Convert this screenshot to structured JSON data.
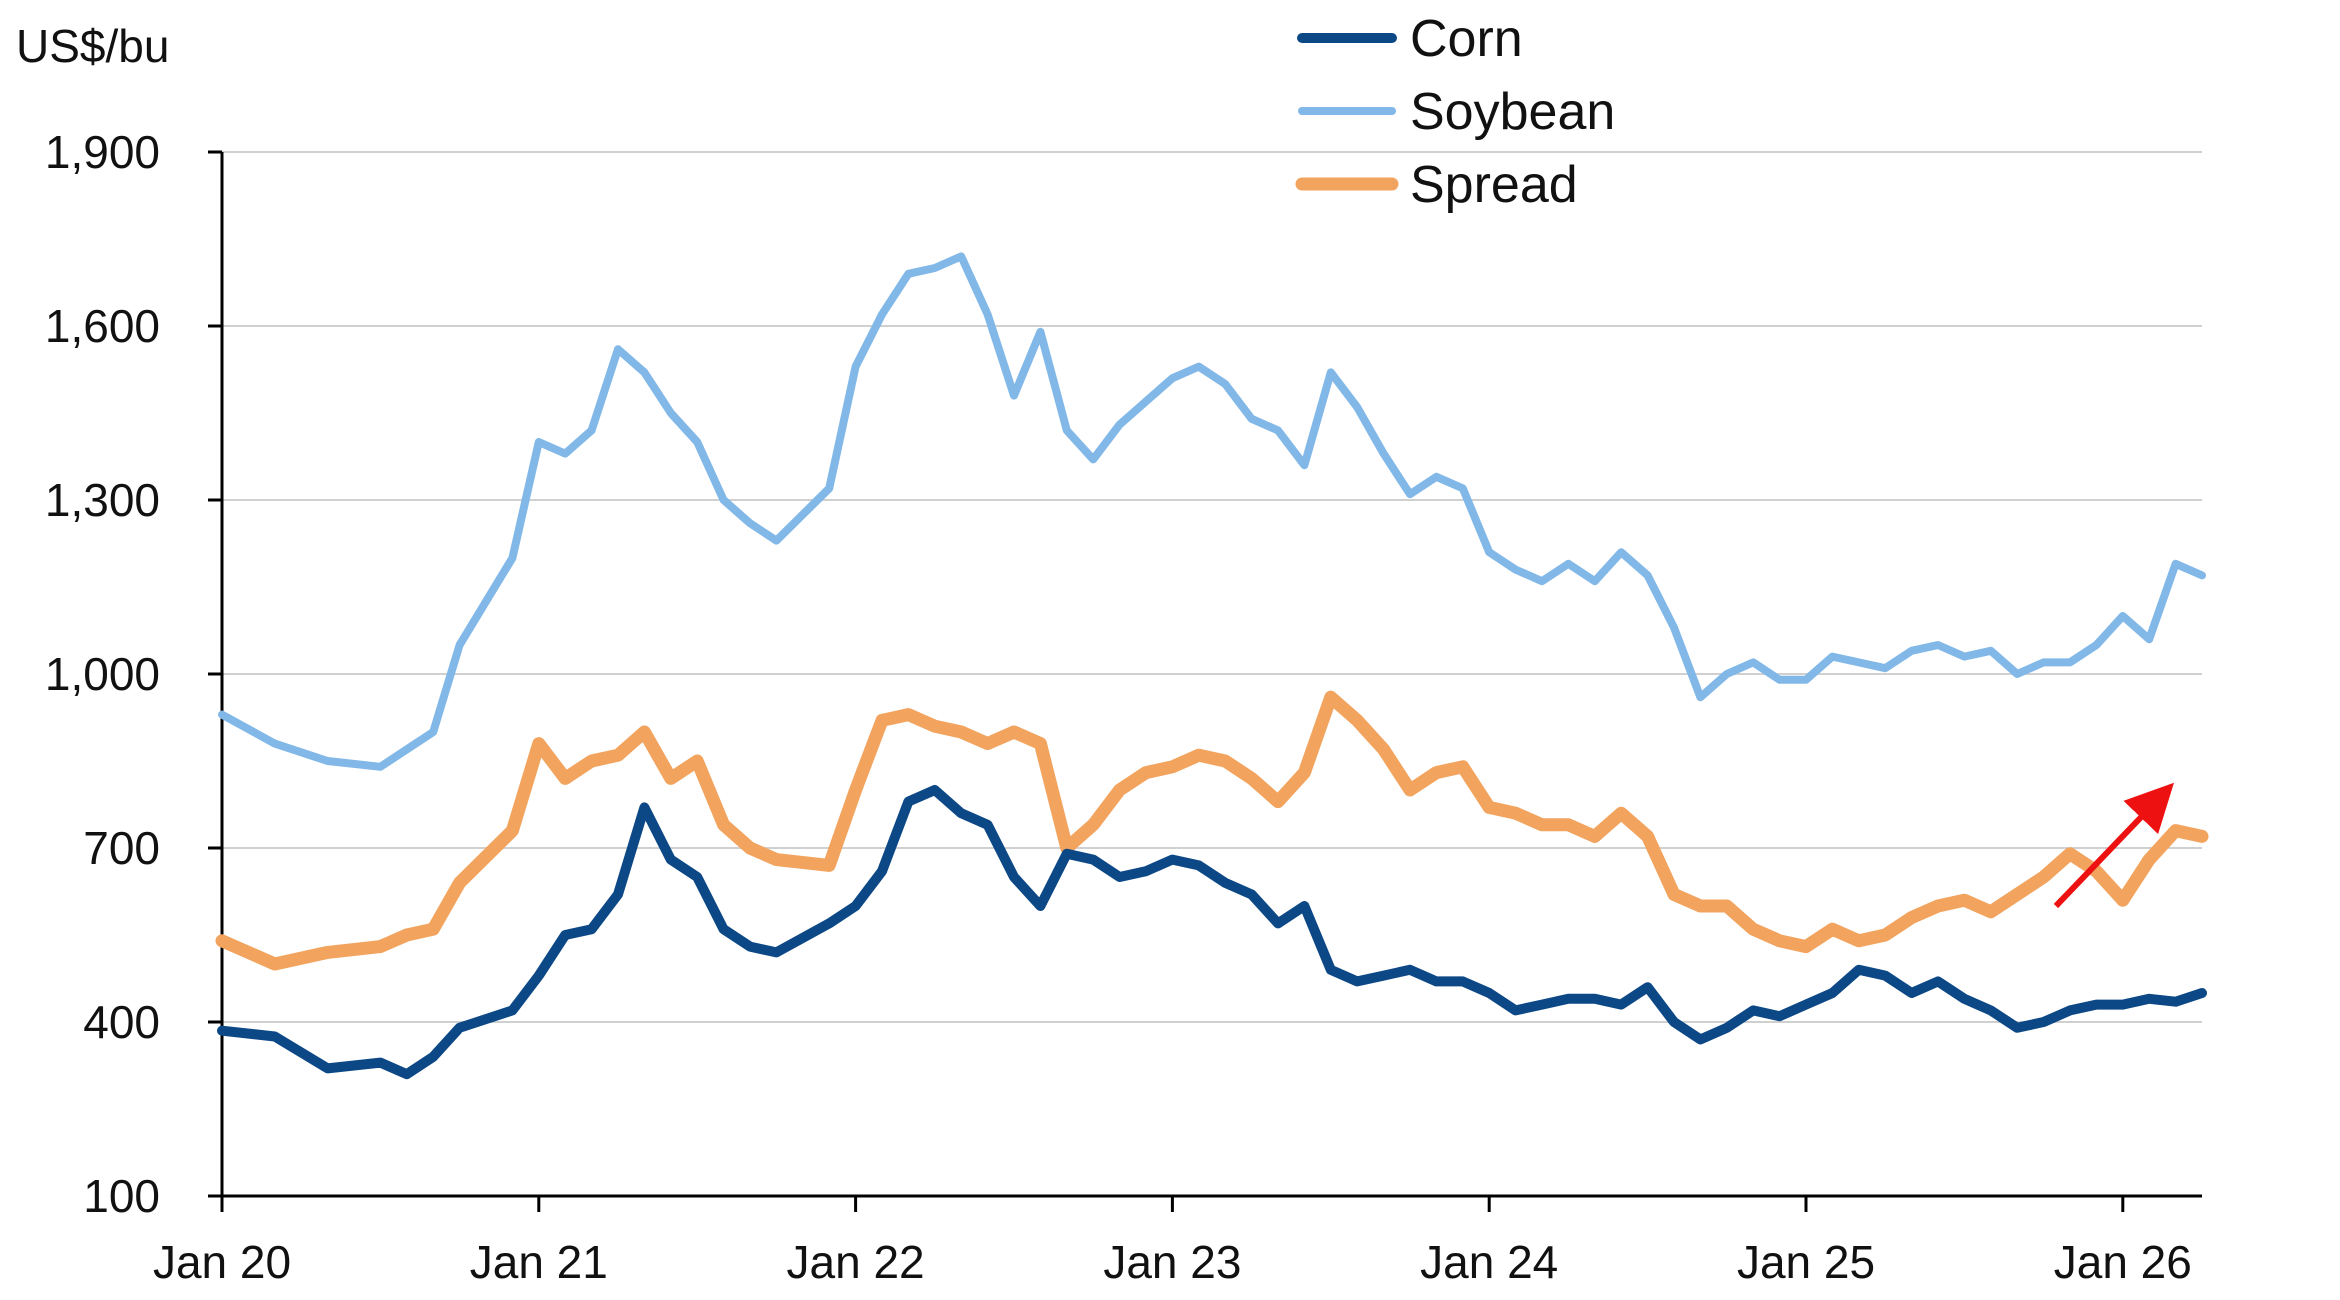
{
  "chart_data": {
    "type": "line",
    "ylabel": "US$/bu",
    "yticks": [
      100,
      400,
      700,
      1000,
      1300,
      1600,
      1900
    ],
    "ytick_labels": [
      "100",
      "400",
      "700",
      "1,000",
      "1,300",
      "1,600",
      "1,900"
    ],
    "ylim": [
      100,
      1900
    ],
    "xlim": [
      "2020-01",
      "2026-04"
    ],
    "xticks": [
      "2020-01",
      "2021-01",
      "2022-01",
      "2023-01",
      "2024-01",
      "2025-01",
      "2026-01"
    ],
    "xtick_labels": [
      "Jan 20",
      "Jan 21",
      "Jan 22",
      "Jan 23",
      "Jan 24",
      "Jan 25",
      "Jan 26"
    ],
    "grid": "horizontal",
    "legend_position": "top-center",
    "series": [
      {
        "name": "Corn",
        "color": "#0d4886",
        "x": [
          "2020-01",
          "2020-03",
          "2020-05",
          "2020-07",
          "2020-08",
          "2020-09",
          "2020-10",
          "2020-12",
          "2021-01",
          "2021-02",
          "2021-03",
          "2021-04",
          "2021-05",
          "2021-06",
          "2021-07",
          "2021-08",
          "2021-09",
          "2021-10",
          "2021-12",
          "2022-01",
          "2022-02",
          "2022-03",
          "2022-04",
          "2022-05",
          "2022-06",
          "2022-07",
          "2022-08",
          "2022-09",
          "2022-10",
          "2022-11",
          "2022-12",
          "2023-01",
          "2023-02",
          "2023-03",
          "2023-04",
          "2023-05",
          "2023-06",
          "2023-07",
          "2023-08",
          "2023-09",
          "2023-10",
          "2023-11",
          "2023-12",
          "2024-01",
          "2024-02",
          "2024-03",
          "2024-04",
          "2024-05",
          "2024-06",
          "2024-07",
          "2024-08",
          "2024-09",
          "2024-10",
          "2024-11",
          "2024-12",
          "2025-01",
          "2025-02",
          "2025-03",
          "2025-04",
          "2025-05",
          "2025-06",
          "2025-07",
          "2025-08",
          "2025-09",
          "2025-10",
          "2025-11",
          "2025-12",
          "2026-01",
          "2026-02",
          "2026-03",
          "2026-04"
        ],
        "values": [
          385,
          375,
          320,
          330,
          310,
          340,
          390,
          420,
          480,
          550,
          560,
          620,
          770,
          680,
          650,
          560,
          530,
          520,
          570,
          600,
          660,
          780,
          800,
          760,
          740,
          650,
          600,
          690,
          680,
          650,
          660,
          680,
          670,
          640,
          620,
          570,
          600,
          490,
          470,
          480,
          490,
          470,
          470,
          450,
          420,
          430,
          440,
          440,
          430,
          460,
          400,
          370,
          390,
          420,
          410,
          430,
          450,
          490,
          480,
          450,
          470,
          440,
          420,
          390,
          400,
          420,
          430,
          430,
          440,
          435,
          450
        ],
        "line_width": 10
      },
      {
        "name": "Soybean",
        "color": "#82b8e8",
        "x": [
          "2020-01",
          "2020-03",
          "2020-05",
          "2020-07",
          "2020-08",
          "2020-09",
          "2020-10",
          "2020-12",
          "2021-01",
          "2021-02",
          "2021-03",
          "2021-04",
          "2021-05",
          "2021-06",
          "2021-07",
          "2021-08",
          "2021-09",
          "2021-10",
          "2021-12",
          "2022-01",
          "2022-02",
          "2022-03",
          "2022-04",
          "2022-05",
          "2022-06",
          "2022-07",
          "2022-08",
          "2022-09",
          "2022-10",
          "2022-11",
          "2022-12",
          "2023-01",
          "2023-02",
          "2023-03",
          "2023-04",
          "2023-05",
          "2023-06",
          "2023-07",
          "2023-08",
          "2023-09",
          "2023-10",
          "2023-11",
          "2023-12",
          "2024-01",
          "2024-02",
          "2024-03",
          "2024-04",
          "2024-05",
          "2024-06",
          "2024-07",
          "2024-08",
          "2024-09",
          "2024-10",
          "2024-11",
          "2024-12",
          "2025-01",
          "2025-02",
          "2025-03",
          "2025-04",
          "2025-05",
          "2025-06",
          "2025-07",
          "2025-08",
          "2025-09",
          "2025-10",
          "2025-11",
          "2025-12",
          "2026-01",
          "2026-02",
          "2026-03",
          "2026-04"
        ],
        "values": [
          930,
          880,
          850,
          840,
          870,
          900,
          1050,
          1200,
          1400,
          1380,
          1420,
          1560,
          1520,
          1450,
          1400,
          1300,
          1260,
          1230,
          1320,
          1530,
          1620,
          1690,
          1700,
          1720,
          1620,
          1480,
          1590,
          1420,
          1370,
          1430,
          1470,
          1510,
          1530,
          1500,
          1440,
          1420,
          1360,
          1520,
          1460,
          1380,
          1310,
          1340,
          1320,
          1210,
          1180,
          1160,
          1190,
          1160,
          1210,
          1170,
          1080,
          960,
          1000,
          1020,
          990,
          990,
          1030,
          1020,
          1010,
          1040,
          1050,
          1030,
          1040,
          1000,
          1020,
          1020,
          1050,
          1100,
          1060,
          1190,
          1170
        ],
        "line_width": 8
      },
      {
        "name": "Spread",
        "color": "#f2a35d",
        "x": [
          "2020-01",
          "2020-03",
          "2020-05",
          "2020-07",
          "2020-08",
          "2020-09",
          "2020-10",
          "2020-12",
          "2021-01",
          "2021-02",
          "2021-03",
          "2021-04",
          "2021-05",
          "2021-06",
          "2021-07",
          "2021-08",
          "2021-09",
          "2021-10",
          "2021-12",
          "2022-01",
          "2022-02",
          "2022-03",
          "2022-04",
          "2022-05",
          "2022-06",
          "2022-07",
          "2022-08",
          "2022-09",
          "2022-10",
          "2022-11",
          "2022-12",
          "2023-01",
          "2023-02",
          "2023-03",
          "2023-04",
          "2023-05",
          "2023-06",
          "2023-07",
          "2023-08",
          "2023-09",
          "2023-10",
          "2023-11",
          "2023-12",
          "2024-01",
          "2024-02",
          "2024-03",
          "2024-04",
          "2024-05",
          "2024-06",
          "2024-07",
          "2024-08",
          "2024-09",
          "2024-10",
          "2024-11",
          "2024-12",
          "2025-01",
          "2025-02",
          "2025-03",
          "2025-04",
          "2025-05",
          "2025-06",
          "2025-07",
          "2025-08",
          "2025-09",
          "2025-10",
          "2025-11",
          "2025-12",
          "2026-01",
          "2026-02",
          "2026-03",
          "2026-04"
        ],
        "values": [
          540,
          500,
          520,
          530,
          550,
          560,
          640,
          730,
          880,
          820,
          850,
          860,
          900,
          820,
          850,
          740,
          700,
          680,
          670,
          800,
          920,
          930,
          910,
          900,
          880,
          900,
          880,
          700,
          740,
          800,
          830,
          840,
          860,
          850,
          820,
          780,
          830,
          960,
          920,
          870,
          800,
          830,
          840,
          770,
          760,
          740,
          740,
          720,
          760,
          720,
          620,
          600,
          600,
          560,
          540,
          530,
          560,
          540,
          550,
          580,
          600,
          610,
          590,
          620,
          650,
          690,
          660,
          610,
          680,
          730,
          720
        ],
        "line_width": 13
      }
    ],
    "annotations": [
      {
        "type": "arrow",
        "color": "#ee1111",
        "from": {
          "x": "2025-10-15",
          "y": 600
        },
        "to": {
          "x": "2026-02-15",
          "y": 790
        }
      }
    ]
  }
}
